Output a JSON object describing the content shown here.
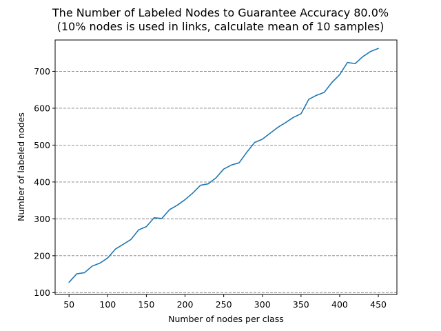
{
  "chart_data": {
    "type": "line",
    "title": "The Number of Labeled Nodes to Guarantee Accuracy 80.0%",
    "subtitle": "(10% nodes is used in links, calculate mean of 10 samples)",
    "xlabel": "Number of nodes per class",
    "ylabel": "Number of labeled nodes",
    "xlim": [
      32,
      474
    ],
    "ylim": [
      95,
      785
    ],
    "xticks": [
      50,
      100,
      150,
      200,
      250,
      300,
      350,
      400,
      450
    ],
    "yticks": [
      100,
      200,
      300,
      400,
      500,
      600,
      700
    ],
    "grid": "y-dashed",
    "series_color": "#1f77b4",
    "x": [
      50,
      60,
      70,
      80,
      90,
      100,
      110,
      120,
      130,
      140,
      150,
      160,
      170,
      180,
      190,
      200,
      210,
      220,
      230,
      240,
      250,
      260,
      270,
      280,
      290,
      300,
      310,
      320,
      330,
      340,
      350,
      360,
      370,
      380,
      390,
      400,
      410,
      420,
      430,
      440,
      450
    ],
    "series": [
      {
        "values": [
          128,
          151,
          154,
          172,
          180,
          194,
          218,
          231,
          244,
          270,
          279,
          303,
          301,
          325,
          337,
          352,
          370,
          391,
          395,
          411,
          435,
          446,
          452,
          481,
          507,
          516,
          532,
          548,
          561,
          575,
          585,
          624,
          635,
          643,
          670,
          691,
          724,
          721,
          740,
          754,
          762
        ]
      }
    ]
  }
}
